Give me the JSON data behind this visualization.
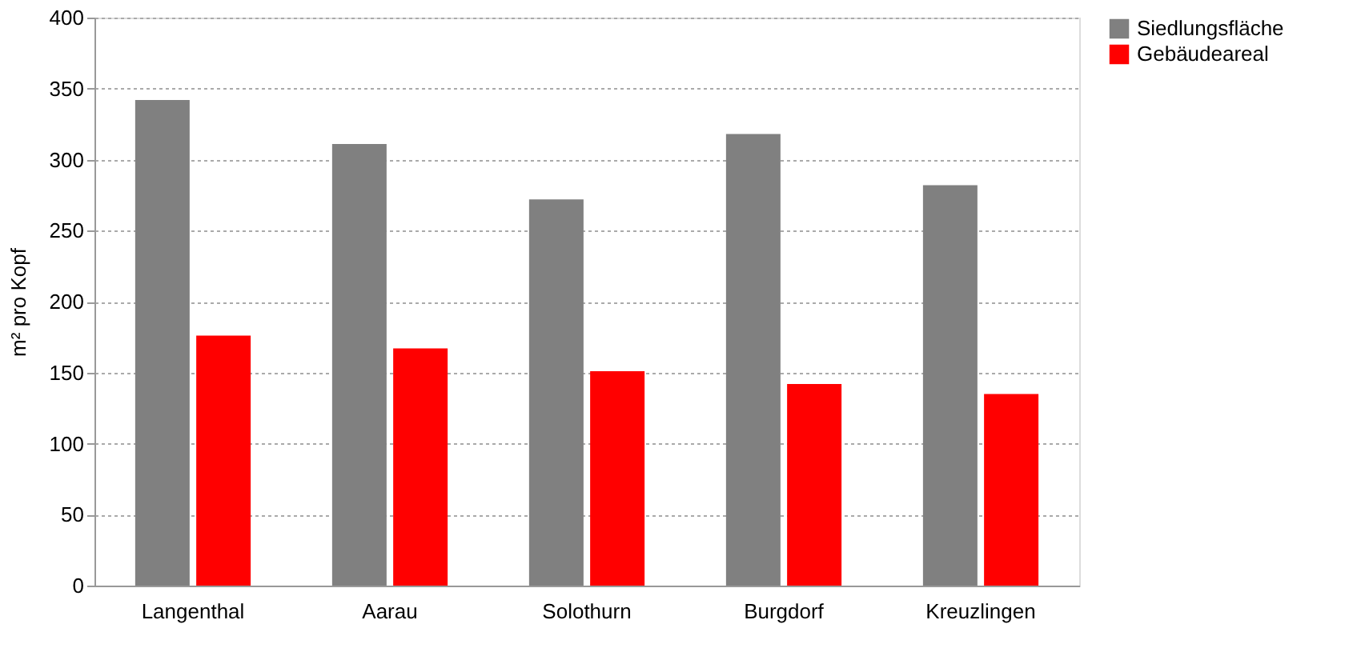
{
  "chart_data": {
    "type": "bar",
    "ylabel": "m² pro Kopf",
    "categories": [
      "Langenthal",
      "Aarau",
      "Solothurn",
      "Burgdorf",
      "Kreuzlingen"
    ],
    "series": [
      {
        "name": "Siedlungsfläche",
        "color": "#808080",
        "values": [
          342,
          311,
          272,
          318,
          282
        ]
      },
      {
        "name": "Gebäudeareal",
        "color": "#ff0000",
        "values": [
          176,
          167,
          151,
          142,
          135
        ]
      }
    ],
    "ylim": [
      0,
      400
    ],
    "yticks": [
      0,
      50,
      100,
      150,
      200,
      250,
      300,
      350,
      400
    ],
    "grid": "y",
    "legend": "right"
  }
}
